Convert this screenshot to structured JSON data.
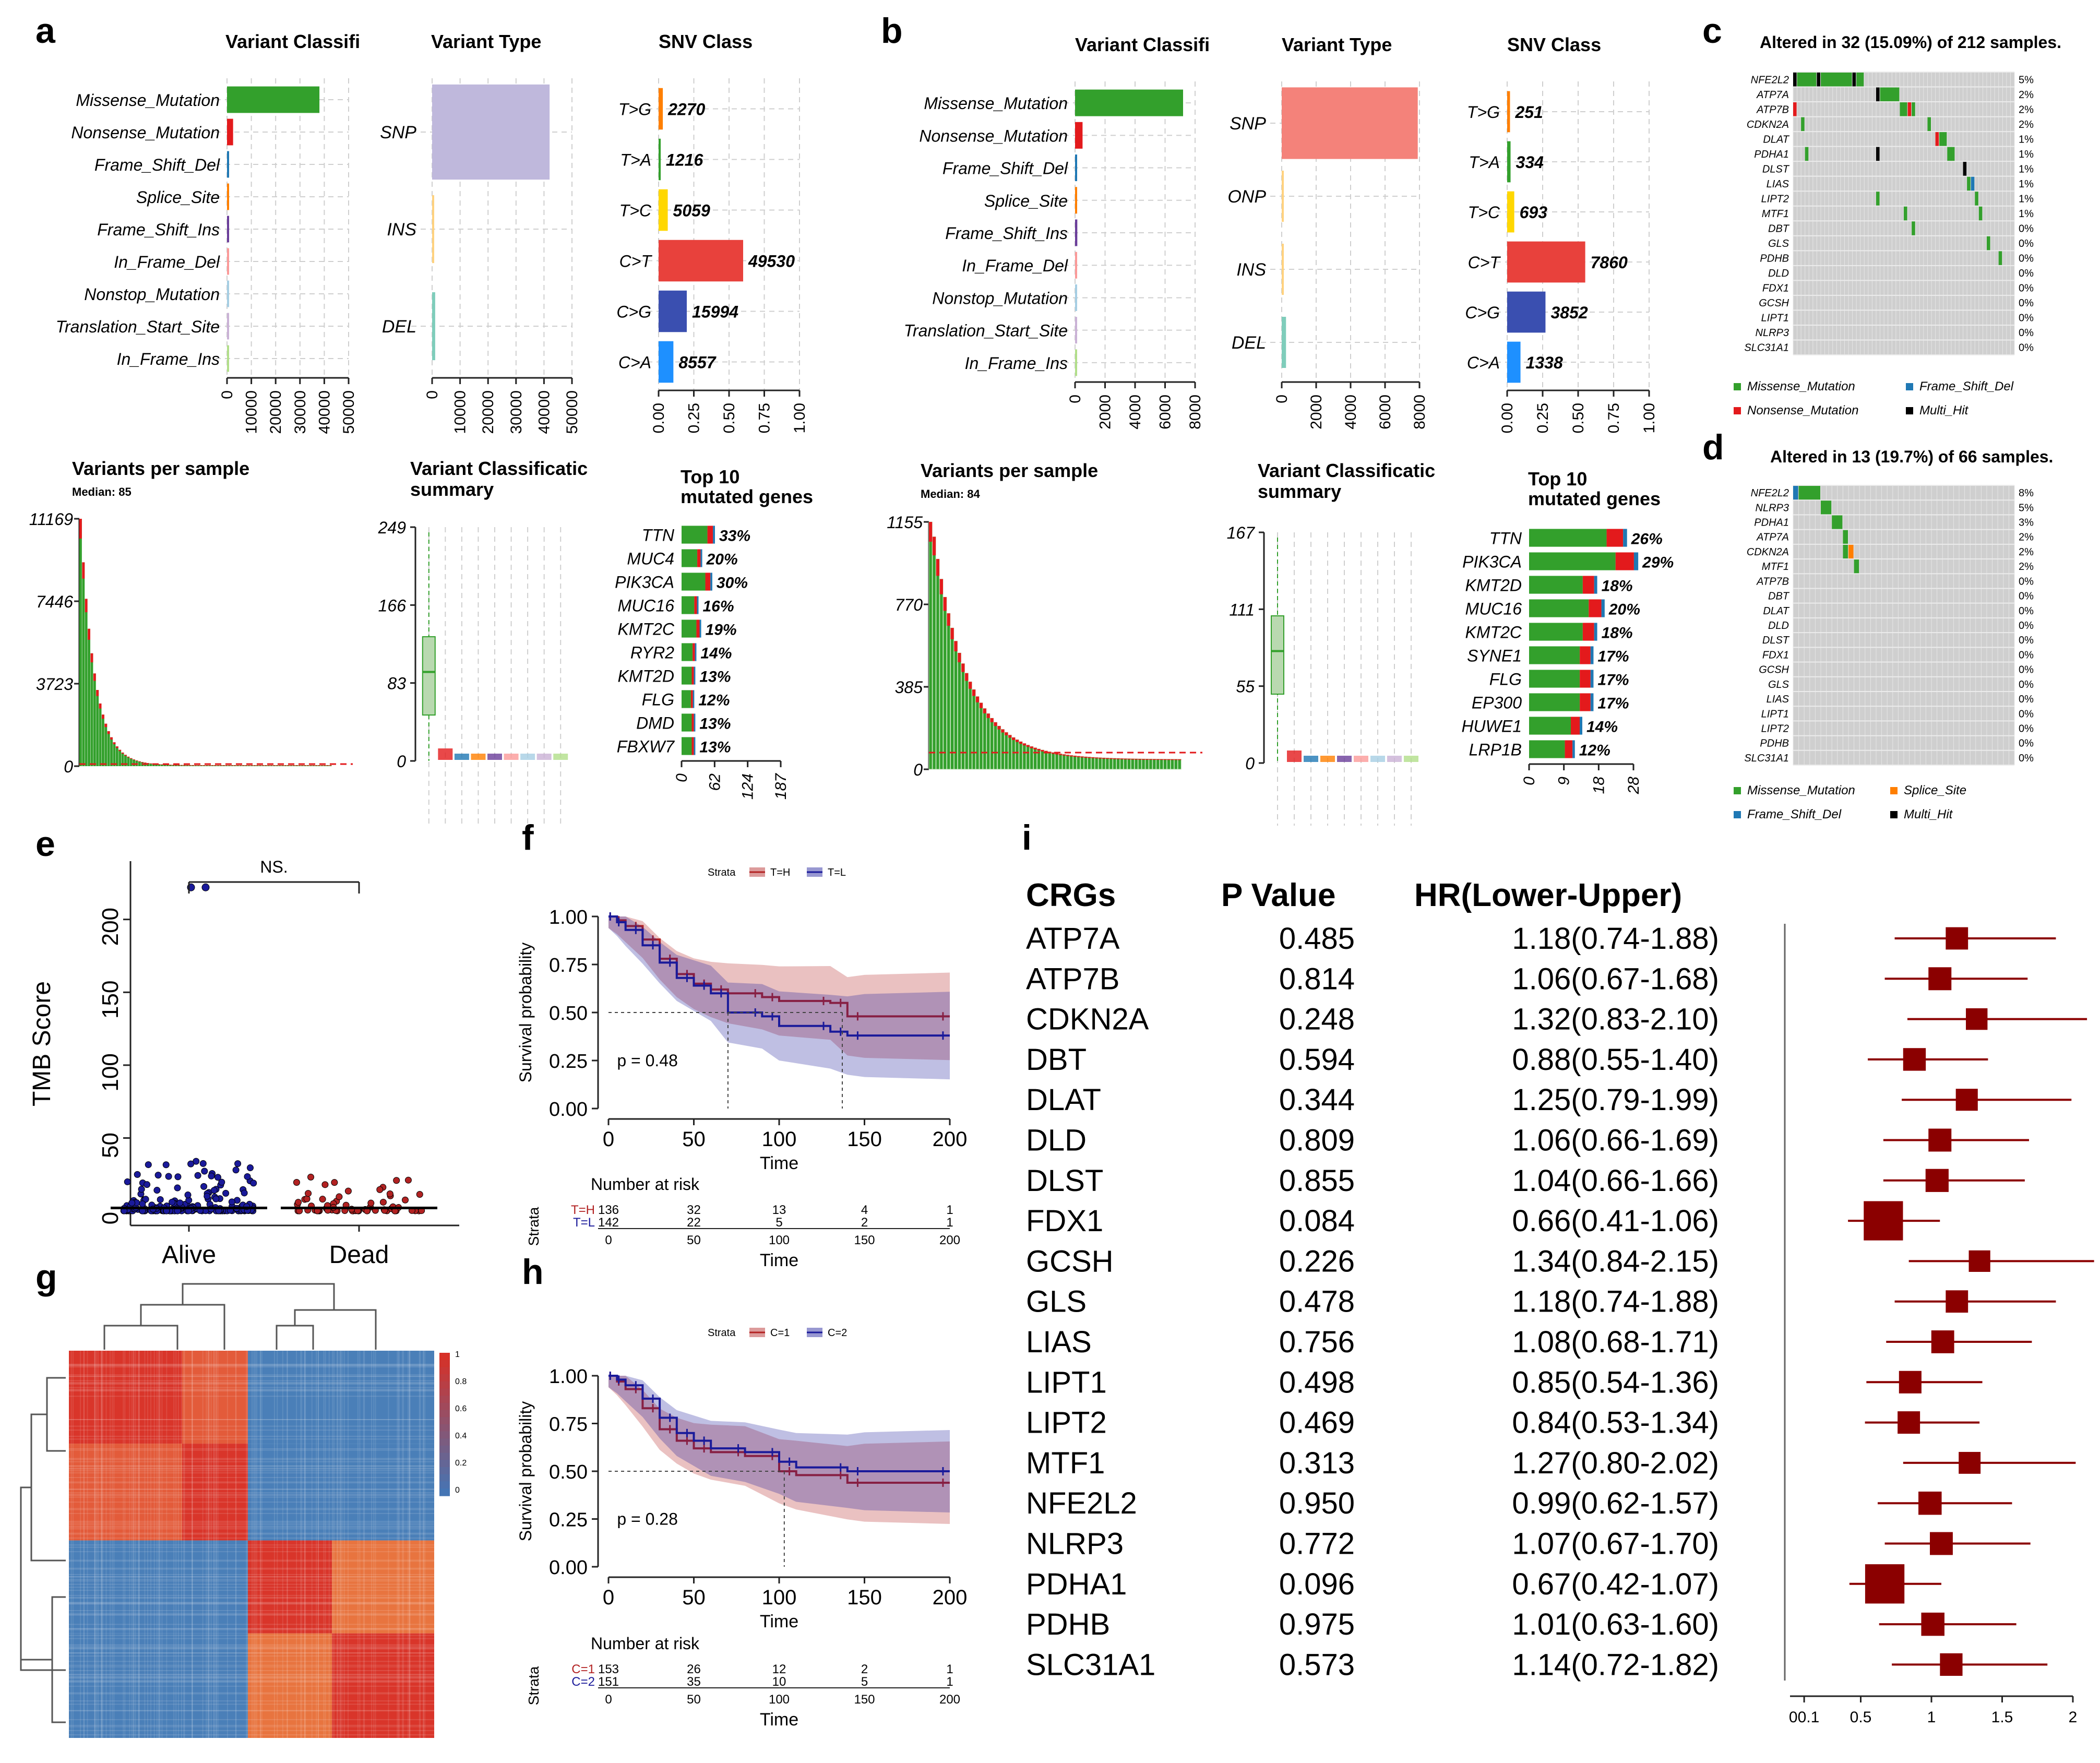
{
  "panels": {
    "a": {
      "letter": "a",
      "vc_title": "Variant Classifi",
      "vt_title": "Variant Type",
      "snv_title": "SNV Class",
      "vps_title": "Variants per sample",
      "vps_median": "Median: 85",
      "vcs_title": "Variant Classificatic",
      "vcs_subtitle": "summary",
      "top10_title": "Top 10",
      "top10_subtitle": "mutated genes"
    },
    "b": {
      "letter": "b",
      "vc_title": "Variant Classifi",
      "vt_title": "Variant Type",
      "snv_title": "SNV Class",
      "vps_title": "Variants per sample",
      "vps_median": "Median: 84",
      "vcs_title": "Variant Classificatic",
      "vcs_subtitle": "summary",
      "top10_title": "Top 10",
      "top10_subtitle": "mutated genes"
    },
    "c": {
      "letter": "c",
      "title": "Altered in 32 (15.09%) of 212 samples."
    },
    "d": {
      "letter": "d",
      "title": "Altered in 13 (19.7%) of 66 samples."
    },
    "e": {
      "letter": "e"
    },
    "f": {
      "letter": "f"
    },
    "g": {
      "letter": "g"
    },
    "h": {
      "letter": "h"
    },
    "i": {
      "letter": "i"
    }
  },
  "colors": {
    "missense": "#33a02c",
    "nonsense": "#e31a1c",
    "frameshift_del": "#1f78b4",
    "splice": "#ff7f00",
    "frameshift_ins": "#6a3d9a",
    "inframe_del": "#fb9a99",
    "nonstop": "#a6cee3",
    "tss": "#cab2d6",
    "inframe_ins": "#b2df8a",
    "multi_hit": "#000000",
    "snp_a": "#bfb8dc",
    "snp_b": "#f4827a",
    "del": "#7fcdbb",
    "strata_high": "#b22222",
    "strata_low": "#1a1a9a",
    "forest": "#8b0000",
    "heat_hot": "#d73027",
    "heat_cold": "#4575b4"
  },
  "chart_data": [
    {
      "id": "a-variant-classification",
      "type": "bar",
      "categories": [
        "Missense_Mutation",
        "Nonsense_Mutation",
        "Frame_Shift_Del",
        "Splice_Site",
        "Frame_Shift_Ins",
        "In_Frame_Del",
        "Nonstop_Mutation",
        "Translation_Start_Site",
        "In_Frame_Ins"
      ],
      "values": [
        38000,
        2500,
        600,
        450,
        250,
        180,
        60,
        40,
        20
      ],
      "xticks": [
        "0",
        "10000",
        "20000",
        "30000",
        "40000",
        "50000"
      ],
      "xlim": [
        0,
        50000
      ]
    },
    {
      "id": "a-variant-type",
      "type": "bar",
      "categories": [
        "SNP",
        "INS",
        "DEL"
      ],
      "values": [
        42000,
        200,
        1100
      ],
      "xticks": [
        "0",
        "10000",
        "20000",
        "30000",
        "40000",
        "50000"
      ],
      "xlim": [
        0,
        50000
      ]
    },
    {
      "id": "a-snv-class",
      "type": "bar",
      "categories": [
        "T>G",
        "T>A",
        "T>C",
        "C>T",
        "C>G",
        "C>A"
      ],
      "labels": [
        "2270",
        "1216",
        "5059",
        "49530",
        "15994",
        "8557"
      ],
      "values": [
        0.03,
        0.015,
        0.065,
        0.6,
        0.2,
        0.105
      ],
      "xticks": [
        "0.00",
        "0.25",
        "0.50",
        "0.75",
        "1.00"
      ],
      "xlim": [
        0,
        1
      ]
    },
    {
      "id": "a-variants-per-sample",
      "type": "bar",
      "yticks": [
        "0",
        "3723",
        "7446",
        "11169"
      ],
      "ylim": [
        0,
        11169
      ],
      "median": 85
    },
    {
      "id": "a-vcs-summary",
      "type": "box",
      "yticks": [
        "0",
        "83",
        "166",
        "249"
      ],
      "ylim": [
        0,
        249
      ]
    },
    {
      "id": "a-top10",
      "type": "bar",
      "categories": [
        "TTN",
        "MUC4",
        "PIK3CA",
        "MUC16",
        "KMT2C",
        "RYR2",
        "KMT2D",
        "FLG",
        "DMD",
        "FBXW7"
      ],
      "labels": [
        "33%",
        "20%",
        "30%",
        "16%",
        "19%",
        "14%",
        "13%",
        "12%",
        "13%",
        "13%"
      ],
      "values": [
        61,
        37,
        56,
        30,
        35,
        26,
        24,
        22,
        24,
        24
      ],
      "xticks": [
        "0",
        "62",
        "124",
        "187"
      ],
      "xlim": [
        0,
        187
      ]
    },
    {
      "id": "b-variant-classification",
      "type": "bar",
      "categories": [
        "Missense_Mutation",
        "Nonsense_Mutation",
        "Frame_Shift_Del",
        "Splice_Site",
        "Frame_Shift_Ins",
        "In_Frame_Del",
        "Nonstop_Mutation",
        "Translation_Start_Site",
        "In_Frame_Ins"
      ],
      "values": [
        7200,
        500,
        120,
        90,
        150,
        40,
        20,
        15,
        10
      ],
      "xticks": [
        "0",
        "2000",
        "4000",
        "6000",
        "8000"
      ],
      "xlim": [
        0,
        8000
      ]
    },
    {
      "id": "b-variant-type",
      "type": "bar",
      "categories": [
        "SNP",
        "ONP",
        "INS",
        "DEL"
      ],
      "values": [
        7900,
        40,
        50,
        250
      ],
      "xticks": [
        "0",
        "2000",
        "4000",
        "6000",
        "8000"
      ],
      "xlim": [
        0,
        8000
      ]
    },
    {
      "id": "b-snv-class",
      "type": "bar",
      "categories": [
        "T>G",
        "T>A",
        "T>C",
        "C>T",
        "C>G",
        "C>A"
      ],
      "labels": [
        "251",
        "334",
        "693",
        "7860",
        "3852",
        "1338"
      ],
      "values": [
        0.02,
        0.024,
        0.05,
        0.55,
        0.27,
        0.094
      ],
      "xticks": [
        "0.00",
        "0.25",
        "0.50",
        "0.75",
        "1.00"
      ],
      "xlim": [
        0,
        1
      ]
    },
    {
      "id": "b-variants-per-sample",
      "type": "bar",
      "yticks": [
        "0",
        "385",
        "770",
        "1155"
      ],
      "ylim": [
        0,
        1155
      ],
      "median": 84
    },
    {
      "id": "b-vcs-summary",
      "type": "box",
      "yticks": [
        "0",
        "55",
        "111",
        "167"
      ],
      "ylim": [
        0,
        167
      ]
    },
    {
      "id": "b-top10",
      "type": "bar",
      "categories": [
        "TTN",
        "PIK3CA",
        "KMT2D",
        "MUC16",
        "KMT2C",
        "SYNE1",
        "FLG",
        "EP300",
        "HUWE1",
        "LRP1B"
      ],
      "labels": [
        "26%",
        "29%",
        "18%",
        "20%",
        "18%",
        "17%",
        "17%",
        "17%",
        "14%",
        "12%"
      ],
      "values": [
        26,
        29,
        18,
        20,
        18,
        17,
        17,
        17,
        14,
        12
      ],
      "xticks": [
        "0",
        "9",
        "18",
        "28"
      ],
      "xlim": [
        0,
        28
      ]
    },
    {
      "id": "c-oncoplot",
      "type": "heatmap",
      "genes": [
        "NFE2L2",
        "ATP7A",
        "ATP7B",
        "CDKN2A",
        "DLAT",
        "PDHA1",
        "DLST",
        "LIAS",
        "LIPT2",
        "MTF1",
        "DBT",
        "GLS",
        "PDHB",
        "DLD",
        "FDX1",
        "GCSH",
        "LIPT1",
        "NLRP3",
        "SLC31A1"
      ],
      "percents": [
        "5%",
        "2%",
        "2%",
        "2%",
        "1%",
        "1%",
        "1%",
        "1%",
        "1%",
        "1%",
        "0%",
        "0%",
        "0%",
        "0%",
        "0%",
        "0%",
        "0%",
        "0%",
        "0%"
      ],
      "legend": [
        "Missense_Mutation",
        "Frame_Shift_Del",
        "Nonsense_Mutation",
        "Multi_Hit"
      ]
    },
    {
      "id": "d-oncoplot",
      "type": "heatmap",
      "genes": [
        "NFE2L2",
        "NLRP3",
        "PDHA1",
        "ATP7A",
        "CDKN2A",
        "MTF1",
        "ATP7B",
        "DBT",
        "DLAT",
        "DLD",
        "DLST",
        "FDX1",
        "GCSH",
        "GLS",
        "LIAS",
        "LIPT1",
        "LIPT2",
        "PDHB",
        "SLC31A1"
      ],
      "percents": [
        "8%",
        "5%",
        "3%",
        "2%",
        "2%",
        "2%",
        "0%",
        "0%",
        "0%",
        "0%",
        "0%",
        "0%",
        "0%",
        "0%",
        "0%",
        "0%",
        "0%",
        "0%",
        "0%"
      ],
      "legend": [
        "Missense_Mutation",
        "Splice_Site",
        "Frame_Shift_Del",
        "Multi_Hit"
      ]
    },
    {
      "id": "e-tmb",
      "type": "scatter",
      "categories": [
        "Alive",
        "Dead"
      ],
      "ylabel": "TMB Score",
      "yticks": [
        "0",
        "50",
        "100",
        "150",
        "200"
      ],
      "ylim": [
        -10,
        240
      ],
      "significance": "NS.",
      "outliers_alive": [
        222,
        222
      ]
    },
    {
      "id": "f-km",
      "type": "line",
      "strata_label": "Strata",
      "legend": [
        "T=H",
        "T=L"
      ],
      "xlabel": "Time",
      "ylabel": "Survival probability",
      "xticks": [
        "0",
        "50",
        "100",
        "150",
        "200"
      ],
      "yticks": [
        "0.00",
        "0.25",
        "0.50",
        "0.75",
        "1.00"
      ],
      "xlim": [
        0,
        200
      ],
      "ylim": [
        0,
        1
      ],
      "pvalue": "p = 0.48",
      "series": [
        {
          "name": "T=H",
          "x": [
            0,
            5,
            10,
            20,
            30,
            40,
            50,
            60,
            70,
            90,
            100,
            130,
            140,
            150,
            200
          ],
          "y": [
            1,
            0.98,
            0.95,
            0.88,
            0.78,
            0.7,
            0.65,
            0.62,
            0.6,
            0.58,
            0.56,
            0.55,
            0.48,
            0.48,
            0.48
          ]
        },
        {
          "name": "T=L",
          "x": [
            0,
            5,
            10,
            20,
            30,
            40,
            50,
            60,
            70,
            90,
            100,
            130,
            140,
            150,
            200
          ],
          "y": [
            1,
            0.97,
            0.93,
            0.85,
            0.76,
            0.68,
            0.64,
            0.6,
            0.5,
            0.48,
            0.43,
            0.4,
            0.38,
            0.38,
            0.38
          ]
        }
      ],
      "risk_title": "Number at risk",
      "risk_ylabel": "Strata",
      "risk_rows": [
        {
          "label": "T=H",
          "values": [
            "136",
            "32",
            "13",
            "4",
            "1"
          ]
        },
        {
          "label": "T=L",
          "values": [
            "142",
            "22",
            "5",
            "2",
            "1"
          ]
        }
      ]
    },
    {
      "id": "g-consensus",
      "type": "heatmap",
      "scale": [
        "1",
        "0.8",
        "0.6",
        "0.4",
        "0.2",
        "0"
      ]
    },
    {
      "id": "h-km",
      "type": "line",
      "strata_label": "Strata",
      "legend": [
        "C=1",
        "C=2"
      ],
      "xlabel": "Time",
      "ylabel": "Survival probability",
      "xticks": [
        "0",
        "50",
        "100",
        "150",
        "200"
      ],
      "yticks": [
        "0.00",
        "0.25",
        "0.50",
        "0.75",
        "1.00"
      ],
      "xlim": [
        0,
        200
      ],
      "ylim": [
        0,
        1
      ],
      "pvalue": "p = 0.28",
      "series": [
        {
          "name": "C=1",
          "x": [
            0,
            5,
            10,
            20,
            30,
            40,
            50,
            60,
            80,
            100,
            110,
            140,
            150,
            200
          ],
          "y": [
            1,
            0.97,
            0.93,
            0.83,
            0.72,
            0.66,
            0.62,
            0.6,
            0.58,
            0.5,
            0.48,
            0.44,
            0.44,
            0.44
          ]
        },
        {
          "name": "C=2",
          "x": [
            0,
            5,
            10,
            20,
            30,
            40,
            50,
            60,
            80,
            100,
            110,
            140,
            150,
            200
          ],
          "y": [
            1,
            0.98,
            0.95,
            0.88,
            0.78,
            0.7,
            0.66,
            0.62,
            0.6,
            0.55,
            0.52,
            0.5,
            0.5,
            0.5
          ]
        }
      ],
      "risk_title": "Number at risk",
      "risk_ylabel": "Strata",
      "risk_rows": [
        {
          "label": "C=1",
          "values": [
            "153",
            "26",
            "12",
            "2",
            "1"
          ]
        },
        {
          "label": "C=2",
          "values": [
            "151",
            "35",
            "10",
            "5",
            "1"
          ]
        }
      ]
    },
    {
      "id": "i-forest",
      "type": "table",
      "headers": [
        "CRGs",
        "P Value",
        "HR(Lower-Upper)"
      ],
      "rows": [
        {
          "gene": "ATP7A",
          "p": "0.485",
          "hr_text": "1.18(0.74-1.88)",
          "hr": 1.18,
          "lo": 0.74,
          "hi": 1.88
        },
        {
          "gene": "ATP7B",
          "p": "0.814",
          "hr_text": "1.06(0.67-1.68)",
          "hr": 1.06,
          "lo": 0.67,
          "hi": 1.68
        },
        {
          "gene": "CDKN2A",
          "p": "0.248",
          "hr_text": "1.32(0.83-2.10)",
          "hr": 1.32,
          "lo": 0.83,
          "hi": 2.1
        },
        {
          "gene": "DBT",
          "p": "0.594",
          "hr_text": "0.88(0.55-1.40)",
          "hr": 0.88,
          "lo": 0.55,
          "hi": 1.4
        },
        {
          "gene": "DLAT",
          "p": "0.344",
          "hr_text": "1.25(0.79-1.99)",
          "hr": 1.25,
          "lo": 0.79,
          "hi": 1.99
        },
        {
          "gene": "DLD",
          "p": "0.809",
          "hr_text": "1.06(0.66-1.69)",
          "hr": 1.06,
          "lo": 0.66,
          "hi": 1.69
        },
        {
          "gene": "DLST",
          "p": "0.855",
          "hr_text": "1.04(0.66-1.66)",
          "hr": 1.04,
          "lo": 0.66,
          "hi": 1.66
        },
        {
          "gene": "FDX1",
          "p": "0.084",
          "hr_text": "0.66(0.41-1.06)",
          "hr": 0.66,
          "lo": 0.41,
          "hi": 1.06
        },
        {
          "gene": "GCSH",
          "p": "0.226",
          "hr_text": "1.34(0.84-2.15)",
          "hr": 1.34,
          "lo": 0.84,
          "hi": 2.15
        },
        {
          "gene": "GLS",
          "p": "0.478",
          "hr_text": "1.18(0.74-1.88)",
          "hr": 1.18,
          "lo": 0.74,
          "hi": 1.88
        },
        {
          "gene": "LIAS",
          "p": "0.756",
          "hr_text": "1.08(0.68-1.71)",
          "hr": 1.08,
          "lo": 0.68,
          "hi": 1.71
        },
        {
          "gene": "LIPT1",
          "p": "0.498",
          "hr_text": "0.85(0.54-1.36)",
          "hr": 0.85,
          "lo": 0.54,
          "hi": 1.36
        },
        {
          "gene": "LIPT2",
          "p": "0.469",
          "hr_text": "0.84(0.53-1.34)",
          "hr": 0.84,
          "lo": 0.53,
          "hi": 1.34
        },
        {
          "gene": "MTF1",
          "p": "0.313",
          "hr_text": "1.27(0.80-2.02)",
          "hr": 1.27,
          "lo": 0.8,
          "hi": 2.02
        },
        {
          "gene": "NFE2L2",
          "p": "0.950",
          "hr_text": "0.99(0.62-1.57)",
          "hr": 0.99,
          "lo": 0.62,
          "hi": 1.57
        },
        {
          "gene": "NLRP3",
          "p": "0.772",
          "hr_text": "1.07(0.67-1.70)",
          "hr": 1.07,
          "lo": 0.67,
          "hi": 1.7
        },
        {
          "gene": "PDHA1",
          "p": "0.096",
          "hr_text": "0.67(0.42-1.07)",
          "hr": 0.67,
          "lo": 0.42,
          "hi": 1.07
        },
        {
          "gene": "PDHB",
          "p": "0.975",
          "hr_text": "1.01(0.63-1.60)",
          "hr": 1.01,
          "lo": 0.63,
          "hi": 1.6
        },
        {
          "gene": "SLC31A1",
          "p": "0.573",
          "hr_text": "1.14(0.72-1.82)",
          "hr": 1.14,
          "lo": 0.72,
          "hi": 1.82
        }
      ],
      "xticks": [
        "00.1",
        "0.5",
        "1",
        "1.5",
        "2"
      ],
      "xlim": [
        0,
        2
      ]
    }
  ]
}
